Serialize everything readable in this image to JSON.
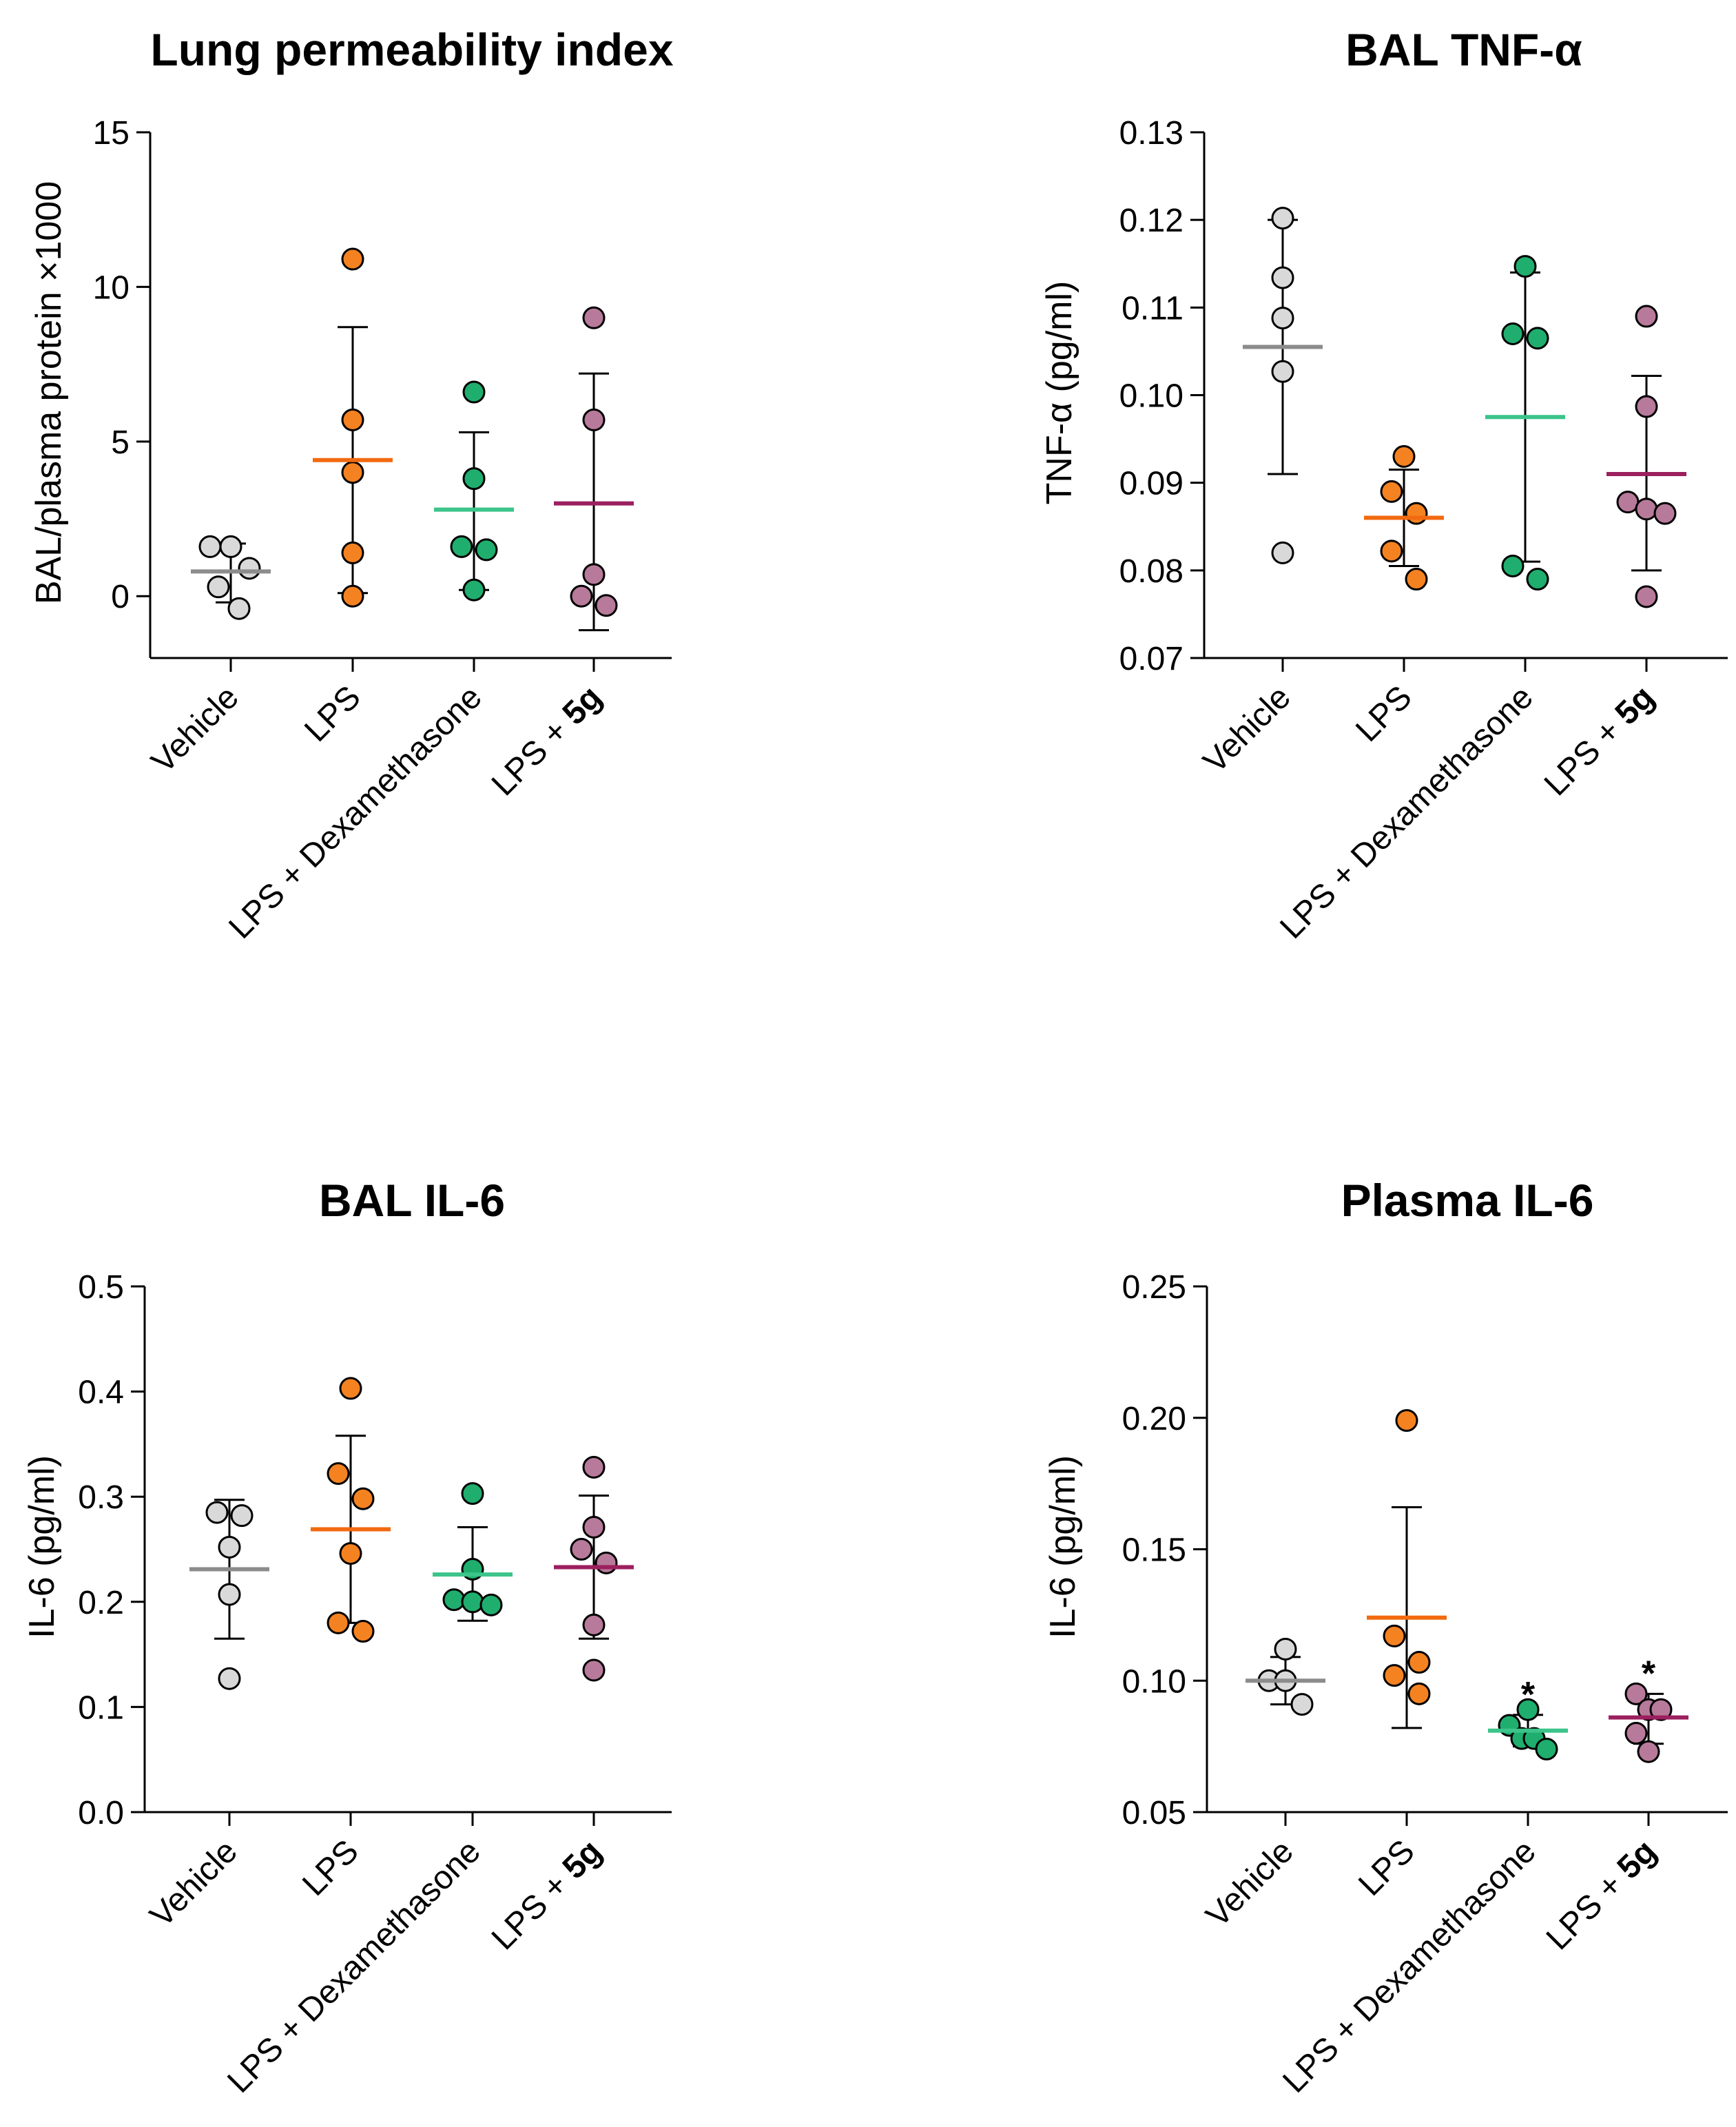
{
  "chart_data": [
    {
      "type": "scatter",
      "title": "Lung permeability index",
      "ylabel": "BAL/plasma protein ×1000",
      "ylim": [
        -2,
        15
      ],
      "yticks": [
        0,
        5,
        10,
        15
      ],
      "tick_labels": [
        "0",
        "5",
        "10",
        "15"
      ],
      "categories": [
        {
          "label": "Vehicle"
        },
        {
          "label": "LPS"
        },
        {
          "label": "LPS + Dexamethasone"
        },
        {
          "label": "LPS + ",
          "bold": "5g"
        }
      ],
      "series": [
        {
          "name": "Vehicle",
          "color": "#d9d9d9",
          "mean_color": "#8c8c8c",
          "mean": 0.8,
          "sd_low": -0.2,
          "sd_high": 1.7,
          "points": [
            {
              "v": 1.6,
              "o": -0.5
            },
            {
              "v": 1.6,
              "o": 0.0
            },
            {
              "v": 0.9,
              "o": 0.45
            },
            {
              "v": 0.3,
              "o": -0.3
            },
            {
              "v": -0.4,
              "o": 0.2
            }
          ]
        },
        {
          "name": "LPS",
          "color": "#f58220",
          "mean_color": "#f26a10",
          "mean": 4.4,
          "sd_low": 0.1,
          "sd_high": 8.7,
          "points": [
            {
              "v": 10.9,
              "o": 0.0
            },
            {
              "v": 5.7,
              "o": 0.0
            },
            {
              "v": 4.0,
              "o": 0.0
            },
            {
              "v": 1.4,
              "o": 0.0
            },
            {
              "v": 0.0,
              "o": 0.0
            }
          ]
        },
        {
          "name": "LPS + Dexamethasone",
          "color": "#1fae6e",
          "mean_color": "#3cc48a",
          "mean": 2.8,
          "sd_low": 0.2,
          "sd_high": 5.3,
          "points": [
            {
              "v": 6.6,
              "o": 0.0
            },
            {
              "v": 3.8,
              "o": 0.0
            },
            {
              "v": 1.6,
              "o": -0.3
            },
            {
              "v": 1.5,
              "o": 0.3
            },
            {
              "v": 0.2,
              "o": 0.0
            }
          ]
        },
        {
          "name": "LPS + 5g",
          "color": "#b87a9a",
          "mean_color": "#9c1f5e",
          "mean": 3.0,
          "sd_low": -1.1,
          "sd_high": 7.2,
          "points": [
            {
              "v": 9.0,
              "o": 0.0
            },
            {
              "v": 5.7,
              "o": 0.0
            },
            {
              "v": 0.7,
              "o": 0.0
            },
            {
              "v": 0.0,
              "o": -0.3
            },
            {
              "v": -0.3,
              "o": 0.3
            }
          ]
        }
      ]
    },
    {
      "type": "scatter",
      "title": "BAL TNF-α",
      "ylabel": "TNF-α (pg/ml)",
      "ylim": [
        0.07,
        0.13
      ],
      "yticks": [
        0.07,
        0.08,
        0.09,
        0.1,
        0.11,
        0.12,
        0.13
      ],
      "tick_labels": [
        "0.07",
        "0.08",
        "0.09",
        "0.10",
        "0.11",
        "0.12",
        "0.13"
      ],
      "categories": [
        {
          "label": "Vehicle"
        },
        {
          "label": "LPS"
        },
        {
          "label": "LPS + Dexamethasone"
        },
        {
          "label": "LPS + ",
          "bold": "5g"
        }
      ],
      "series": [
        {
          "name": "Vehicle",
          "color": "#d9d9d9",
          "mean_color": "#8c8c8c",
          "mean": 0.1055,
          "sd_low": 0.091,
          "sd_high": 0.12,
          "points": [
            {
              "v": 0.1202,
              "o": 0.0
            },
            {
              "v": 0.1134,
              "o": 0.0
            },
            {
              "v": 0.1088,
              "o": 0.0
            },
            {
              "v": 0.1027,
              "o": 0.0
            },
            {
              "v": 0.082,
              "o": 0.0
            }
          ]
        },
        {
          "name": "LPS",
          "color": "#f58220",
          "mean_color": "#f26a10",
          "mean": 0.086,
          "sd_low": 0.0805,
          "sd_high": 0.0915,
          "points": [
            {
              "v": 0.093,
              "o": 0.0
            },
            {
              "v": 0.089,
              "o": -0.3
            },
            {
              "v": 0.0865,
              "o": 0.3
            },
            {
              "v": 0.0822,
              "o": -0.3
            },
            {
              "v": 0.079,
              "o": 0.3
            }
          ]
        },
        {
          "name": "LPS + Dexamethasone",
          "color": "#1fae6e",
          "mean_color": "#3cc48a",
          "mean": 0.0975,
          "sd_low": 0.081,
          "sd_high": 0.114,
          "points": [
            {
              "v": 0.1147,
              "o": 0.0
            },
            {
              "v": 0.107,
              "o": -0.3
            },
            {
              "v": 0.1065,
              "o": 0.3
            },
            {
              "v": 0.0805,
              "o": -0.3
            },
            {
              "v": 0.079,
              "o": 0.3
            }
          ]
        },
        {
          "name": "LPS + 5g",
          "color": "#b87a9a",
          "mean_color": "#9c1f5e",
          "mean": 0.091,
          "sd_low": 0.08,
          "sd_high": 0.1022,
          "points": [
            {
              "v": 0.109,
              "o": 0.0
            },
            {
              "v": 0.0987,
              "o": 0.0
            },
            {
              "v": 0.0878,
              "o": -0.45
            },
            {
              "v": 0.087,
              "o": 0.0
            },
            {
              "v": 0.0865,
              "o": 0.45
            },
            {
              "v": 0.077,
              "o": 0.0
            }
          ]
        }
      ]
    },
    {
      "type": "scatter",
      "title": "BAL IL-6",
      "ylabel": "IL-6 (pg/ml)",
      "ylim": [
        0.0,
        0.5
      ],
      "yticks": [
        0.0,
        0.1,
        0.2,
        0.3,
        0.4,
        0.5
      ],
      "tick_labels": [
        "0.0",
        "0.1",
        "0.2",
        "0.3",
        "0.4",
        "0.5"
      ],
      "categories": [
        {
          "label": "Vehicle"
        },
        {
          "label": "LPS"
        },
        {
          "label": "LPS + Dexamethasone"
        },
        {
          "label": "LPS + ",
          "bold": "5g"
        }
      ],
      "series": [
        {
          "name": "Vehicle",
          "color": "#d9d9d9",
          "mean_color": "#8c8c8c",
          "mean": 0.231,
          "sd_low": 0.165,
          "sd_high": 0.297,
          "points": [
            {
              "v": 0.285,
              "o": -0.3
            },
            {
              "v": 0.282,
              "o": 0.3
            },
            {
              "v": 0.252,
              "o": 0.0
            },
            {
              "v": 0.207,
              "o": 0.0
            },
            {
              "v": 0.127,
              "o": 0.0
            }
          ]
        },
        {
          "name": "LPS",
          "color": "#f58220",
          "mean_color": "#f26a10",
          "mean": 0.269,
          "sd_low": 0.18,
          "sd_high": 0.358,
          "points": [
            {
              "v": 0.403,
              "o": 0.0
            },
            {
              "v": 0.322,
              "o": -0.3
            },
            {
              "v": 0.298,
              "o": 0.3
            },
            {
              "v": 0.246,
              "o": 0.0
            },
            {
              "v": 0.18,
              "o": -0.3
            },
            {
              "v": 0.172,
              "o": 0.3
            }
          ]
        },
        {
          "name": "LPS + Dexamethasone",
          "color": "#1fae6e",
          "mean_color": "#3cc48a",
          "mean": 0.226,
          "sd_low": 0.182,
          "sd_high": 0.271,
          "points": [
            {
              "v": 0.303,
              "o": 0.0
            },
            {
              "v": 0.231,
              "o": 0.0
            },
            {
              "v": 0.202,
              "o": -0.45
            },
            {
              "v": 0.2,
              "o": 0.0
            },
            {
              "v": 0.197,
              "o": 0.45
            }
          ]
        },
        {
          "name": "LPS + 5g",
          "color": "#b87a9a",
          "mean_color": "#9c1f5e",
          "mean": 0.233,
          "sd_low": 0.165,
          "sd_high": 0.301,
          "points": [
            {
              "v": 0.328,
              "o": 0.0
            },
            {
              "v": 0.271,
              "o": 0.0
            },
            {
              "v": 0.25,
              "o": -0.3
            },
            {
              "v": 0.237,
              "o": 0.3
            },
            {
              "v": 0.178,
              "o": 0.0
            },
            {
              "v": 0.135,
              "o": 0.0
            }
          ]
        }
      ]
    },
    {
      "type": "scatter",
      "title": "Plasma IL-6",
      "ylabel": "IL-6 (pg/ml)",
      "ylim": [
        0.05,
        0.25
      ],
      "yticks": [
        0.05,
        0.1,
        0.15,
        0.2,
        0.25
      ],
      "tick_labels": [
        "0.05",
        "0.10",
        "0.15",
        "0.20",
        "0.25"
      ],
      "categories": [
        {
          "label": "Vehicle"
        },
        {
          "label": "LPS"
        },
        {
          "label": "LPS + Dexamethasone"
        },
        {
          "label": "LPS + ",
          "bold": "5g"
        }
      ],
      "series": [
        {
          "name": "Vehicle",
          "color": "#d9d9d9",
          "mean_color": "#8c8c8c",
          "mean": 0.1,
          "sd_low": 0.091,
          "sd_high": 0.109,
          "points": [
            {
              "v": 0.112,
              "o": 0.0
            },
            {
              "v": 0.1,
              "o": -0.4
            },
            {
              "v": 0.1,
              "o": 0.0
            },
            {
              "v": 0.091,
              "o": 0.4
            }
          ]
        },
        {
          "name": "LPS",
          "color": "#f58220",
          "mean_color": "#f26a10",
          "mean": 0.124,
          "sd_low": 0.082,
          "sd_high": 0.166,
          "points": [
            {
              "v": 0.199,
              "o": 0.0
            },
            {
              "v": 0.117,
              "o": -0.3
            },
            {
              "v": 0.107,
              "o": 0.3
            },
            {
              "v": 0.102,
              "o": -0.3
            },
            {
              "v": 0.095,
              "o": 0.3
            }
          ]
        },
        {
          "name": "LPS + Dexamethasone",
          "color": "#1fae6e",
          "mean_color": "#3cc48a",
          "mean": 0.081,
          "sd_low": 0.075,
          "sd_high": 0.087,
          "marker": "*",
          "points": [
            {
              "v": 0.089,
              "o": 0.0
            },
            {
              "v": 0.083,
              "o": -0.45
            },
            {
              "v": 0.078,
              "o": -0.15
            },
            {
              "v": 0.078,
              "o": 0.15
            },
            {
              "v": 0.074,
              "o": 0.45
            }
          ]
        },
        {
          "name": "LPS + 5g",
          "color": "#b87a9a",
          "mean_color": "#9c1f5e",
          "mean": 0.086,
          "sd_low": 0.076,
          "sd_high": 0.095,
          "marker": "*",
          "points": [
            {
              "v": 0.095,
              "o": -0.3
            },
            {
              "v": 0.089,
              "o": 0.0
            },
            {
              "v": 0.089,
              "o": 0.3
            },
            {
              "v": 0.08,
              "o": -0.3
            },
            {
              "v": 0.073,
              "o": 0.0
            }
          ]
        }
      ]
    }
  ]
}
